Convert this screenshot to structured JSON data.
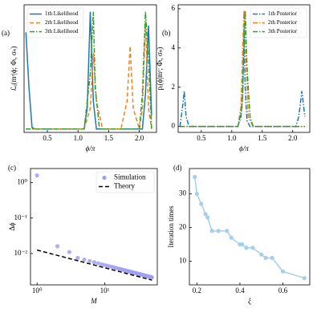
{
  "chart_data": [
    {
      "type": "line",
      "panel_label": "(a)",
      "xlabel": "ϕ/π",
      "ylabel": "ℒᵢ(mᶻ|ϕ; Φₗ, σₙ)",
      "xlim": [
        0.12,
        2.28
      ],
      "ylim": [
        -0.05,
        1.8
      ],
      "xticks": [
        0.5,
        {
          "value": 1,
          "label": "1.0"
        },
        1.5,
        {
          "value": 2,
          "label": "2.0"
        }
      ],
      "legend": "upper left",
      "series": [
        {
          "name": "1th Likelihood",
          "color": "#1f77b4",
          "linestyle": "solid",
          "x": [
            0.15,
            0.2,
            0.25,
            0.3,
            1.1,
            1.15,
            1.2,
            1.25,
            1.3,
            2.05,
            2.1,
            2.15,
            2.2
          ],
          "values": [
            1.4,
            0.6,
            0.02,
            0,
            0,
            0.3,
            1.7,
            0.4,
            0,
            0,
            0.5,
            1.5,
            0.2
          ]
        },
        {
          "name": "2th Likelihood",
          "color": "#ff7f0e",
          "linestyle": "dashed",
          "x": [
            0.15,
            1.1,
            1.2,
            1.25,
            1.3,
            1.4,
            1.7,
            1.8,
            1.85,
            1.9,
            2.0,
            2.05,
            2.1,
            2.15,
            2.2
          ],
          "values": [
            0,
            0,
            0.3,
            1.1,
            0.4,
            0,
            0,
            0.4,
            1.2,
            0.3,
            0,
            0.3,
            1.55,
            0.3,
            0
          ]
        },
        {
          "name": "3th Likelihood",
          "color": "#2ca02c",
          "linestyle": "dashdot",
          "x": [
            0.15,
            1.1,
            1.2,
            1.25,
            1.28,
            1.35,
            1.9,
            2.0,
            2.05,
            2.1,
            2.15,
            2.2
          ],
          "values": [
            0,
            0,
            0.8,
            1.7,
            0.6,
            0,
            0,
            0,
            0.5,
            1.7,
            1.0,
            0
          ]
        }
      ]
    },
    {
      "type": "line",
      "panel_label": "(b)",
      "xlabel": "ϕ/π",
      "ylabel": "pᵢ(ϕ|mᶻ; Φₗ, σₙ)",
      "xlim": [
        0.12,
        2.28
      ],
      "ylim": [
        -0.3,
        6.2
      ],
      "xticks": [
        0.5,
        {
          "value": 1,
          "label": "1.0"
        },
        1.5,
        {
          "value": 2,
          "label": "2.0"
        }
      ],
      "yticks": [
        0,
        2,
        4,
        6
      ],
      "legend": "upper right",
      "series": [
        {
          "name": "1th Posterior",
          "color": "#1f77b4",
          "linestyle": "dashdot",
          "x": [
            0.15,
            0.2,
            0.22,
            0.25,
            0.3,
            1.1,
            1.15,
            1.18,
            1.2,
            1.22,
            1.25,
            1.3,
            2.05,
            2.1,
            2.15,
            2.2
          ],
          "values": [
            0,
            1.2,
            1.8,
            0.5,
            0,
            0,
            0.5,
            1.7,
            5.0,
            2.0,
            0.3,
            0,
            0,
            0.5,
            1.8,
            0.5
          ]
        },
        {
          "name": "2th Posterior",
          "color": "#ff7f0e",
          "linestyle": "dashdot",
          "x": [
            0.15,
            1.1,
            1.15,
            1.2,
            1.23,
            1.27,
            1.35,
            2.2
          ],
          "values": [
            0,
            0,
            1,
            5.9,
            4,
            0.5,
            0,
            0
          ]
        },
        {
          "name": "3th Posterior",
          "color": "#2ca02c",
          "linestyle": "dashdot",
          "x": [
            0.15,
            1.1,
            1.17,
            1.22,
            1.25,
            1.3,
            1.35,
            2.2
          ],
          "values": [
            0,
            0,
            1,
            5.9,
            3,
            0.5,
            0,
            0
          ]
        }
      ]
    },
    {
      "type": "scatter",
      "panel_label": "(c)",
      "xlabel": "M",
      "ylabel": "Δϕ",
      "xscale": "log",
      "yscale": "log",
      "xlim": [
        0.8,
        60
      ],
      "ylim": [
        0.0013,
        2.5
      ],
      "xticks": [
        {
          "value": 1,
          "label": "10⁰"
        },
        {
          "value": 10,
          "label": "10¹"
        }
      ],
      "yticks": [
        {
          "value": 0.01,
          "label": "10⁻²"
        },
        {
          "value": 0.1,
          "label": "10⁻¹"
        },
        {
          "value": 1,
          "label": "10⁰"
        }
      ],
      "legend": "upper right",
      "series": [
        {
          "name": "Simulation",
          "color": "#a0a0f0",
          "kind": "scatter",
          "x": [
            1,
            2,
            3,
            4,
            5,
            6,
            7,
            8,
            9,
            10,
            11,
            12,
            13,
            14,
            15,
            16,
            17,
            18,
            19,
            20,
            21,
            22,
            23,
            24,
            25,
            26,
            27,
            28,
            29,
            30,
            31,
            32,
            33,
            34,
            35,
            36,
            37,
            38,
            39,
            40,
            41,
            42,
            43,
            44,
            45,
            46,
            47,
            48,
            49,
            50
          ],
          "values": [
            1.6,
            0.016,
            0.011,
            0.0075,
            0.00671,
            0.00612,
            0.00567,
            0.0053,
            0.005,
            0.00474,
            0.00452,
            0.00433,
            0.00416,
            0.00401,
            0.00387,
            0.00375,
            0.00364,
            0.00354,
            0.00344,
            0.00335,
            0.00327,
            0.0032,
            0.00313,
            0.00306,
            0.003,
            0.00294,
            0.00289,
            0.00283,
            0.00279,
            0.00274,
            0.00269,
            0.00265,
            0.00261,
            0.00257,
            0.00254,
            0.0025,
            0.00247,
            0.00243,
            0.0024,
            0.00237,
            0.00234,
            0.00231,
            0.00229,
            0.00226,
            0.00224,
            0.00221,
            0.00219,
            0.00217,
            0.00214,
            0.00212
          ]
        },
        {
          "name": "Theory",
          "color": "#000000",
          "kind": "line",
          "linestyle": "dashed",
          "x": [
            1,
            50
          ],
          "values": [
            0.0125,
            0.00177
          ]
        }
      ]
    },
    {
      "type": "line",
      "panel_label": "(d)",
      "xlabel": "ξ",
      "ylabel": "Iteration times",
      "xlim": [
        0.165,
        0.725
      ],
      "ylim": [
        3,
        37.5
      ],
      "xticks": [
        0.2,
        0.4,
        0.6
      ],
      "yticks": [
        10,
        20,
        30
      ],
      "series": [
        {
          "color": "#a6cfec",
          "linestyle": "solid",
          "markers": true,
          "x": [
            0.19,
            0.2,
            0.22,
            0.24,
            0.25,
            0.27,
            0.3,
            0.34,
            0.36,
            0.4,
            0.41,
            0.43,
            0.46,
            0.5,
            0.52,
            0.55,
            0.6,
            0.7
          ],
          "values": [
            35,
            30,
            27,
            24,
            23,
            19,
            19,
            19,
            17,
            15,
            15,
            14,
            14,
            12,
            11,
            11,
            7,
            5
          ]
        }
      ]
    }
  ]
}
